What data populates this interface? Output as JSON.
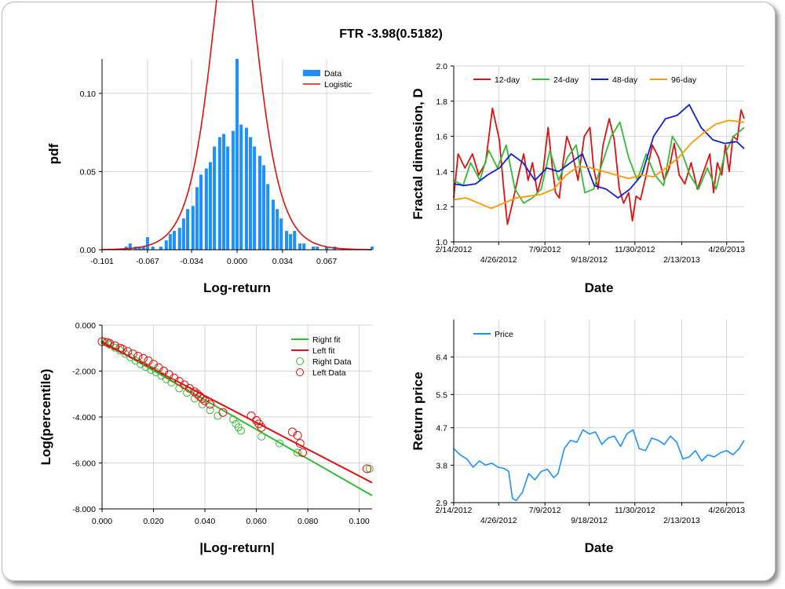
{
  "title": "FTR -3.98(0.5182)",
  "chart_data": [
    {
      "type": "bar",
      "id": "hist",
      "xlabel": "Log-return",
      "ylabel": "pdf",
      "xlim": [
        -0.101,
        0.101
      ],
      "ylim": [
        0,
        0.122
      ],
      "xticks": [
        -0.101,
        -0.067,
        -0.034,
        0.0,
        0.034,
        0.067
      ],
      "xtick_labels": [
        "-0.101",
        "-0.067",
        "-0.034",
        "0.000",
        "0.034",
        "0.067"
      ],
      "yticks": [
        0.0,
        0.05,
        0.1
      ],
      "ytick_labels": [
        "0.00",
        "0.05",
        "0.10"
      ],
      "legend": [
        "Data",
        "Logistic"
      ],
      "legend_position": "top-right",
      "colors": {
        "bars": "#1e90ff",
        "fit": "#dd1111"
      },
      "bin_width": 0.0033,
      "bins": [
        [
          -0.083,
          0.002
        ],
        [
          -0.08,
          0.004
        ],
        [
          -0.076,
          0.002
        ],
        [
          -0.073,
          0.002
        ],
        [
          -0.07,
          0.002
        ],
        [
          -0.067,
          0.008
        ],
        [
          -0.063,
          0.002
        ],
        [
          -0.057,
          0.002
        ],
        [
          -0.053,
          0.006
        ],
        [
          -0.05,
          0.01
        ],
        [
          -0.047,
          0.012
        ],
        [
          -0.043,
          0.014
        ],
        [
          -0.04,
          0.02
        ],
        [
          -0.037,
          0.026
        ],
        [
          -0.033,
          0.028
        ],
        [
          -0.03,
          0.04
        ],
        [
          -0.027,
          0.048
        ],
        [
          -0.023,
          0.052
        ],
        [
          -0.02,
          0.056
        ],
        [
          -0.017,
          0.066
        ],
        [
          -0.013,
          0.072
        ],
        [
          -0.01,
          0.074
        ],
        [
          -0.007,
          0.066
        ],
        [
          -0.003,
          0.076
        ],
        [
          0.0,
          0.122
        ],
        [
          0.003,
          0.08
        ],
        [
          0.007,
          0.078
        ],
        [
          0.01,
          0.072
        ],
        [
          0.013,
          0.066
        ],
        [
          0.017,
          0.06
        ],
        [
          0.02,
          0.054
        ],
        [
          0.023,
          0.042
        ],
        [
          0.027,
          0.032
        ],
        [
          0.03,
          0.026
        ],
        [
          0.033,
          0.02
        ],
        [
          0.037,
          0.012
        ],
        [
          0.04,
          0.01
        ],
        [
          0.043,
          0.012
        ],
        [
          0.047,
          0.004
        ],
        [
          0.05,
          0.004
        ],
        [
          0.057,
          0.002
        ],
        [
          0.06,
          0.002
        ],
        [
          0.067,
          0.002
        ],
        [
          0.073,
          0.002
        ],
        [
          0.101,
          0.002
        ]
      ],
      "fit": {
        "type": "logistic",
        "mu": -0.002,
        "s": 0.0112
      }
    },
    {
      "type": "line",
      "id": "fractal",
      "xlabel": "Date",
      "ylabel": "Fractal dimension, D",
      "ylim": [
        1.0,
        2.0
      ],
      "yticks": [
        1.0,
        1.2,
        1.4,
        1.6,
        1.8,
        2.0
      ],
      "ytick_labels": [
        "1.0",
        "1.2",
        "1.4",
        "1.6",
        "1.8",
        "2.0"
      ],
      "xlim": [
        "2/14/2012",
        "5/24/2013"
      ],
      "xtick_labels_top": [
        "2/14/2012",
        "7/9/2012",
        "11/30/2012",
        "4/26/2013"
      ],
      "xtick_labels_bottom": [
        "4/26/2012",
        "9/18/2012",
        "2/13/2013"
      ],
      "legend_position": "top",
      "series": [
        {
          "name": "12-day",
          "color": "#dd1111",
          "x": [
            "2/14/2012",
            "2/21/2012",
            "3/3/2012",
            "3/15/2012",
            "3/25/2012",
            "4/5/2012",
            "4/16/2012",
            "4/27/2012",
            "5/4/2012",
            "5/10/2012",
            "5/18/2012",
            "5/29/2012",
            "6/5/2012",
            "6/12/2012",
            "6/19/2012",
            "6/27/2012",
            "7/6/2012",
            "7/14/2012",
            "7/21/2012",
            "7/26/2012",
            "8/1/2012",
            "8/7/2012",
            "8/13/2012",
            "8/21/2012",
            "8/31/2012",
            "9/10/2012",
            "9/19/2012",
            "9/25/2012",
            "10/2/2012",
            "10/10/2012",
            "10/20/2012",
            "10/28/2012",
            "11/5/2012",
            "11/12/2012",
            "11/20/2012",
            "11/26/2012",
            "12/2/2012",
            "12/9/2012",
            "12/18/2012",
            "12/28/2012",
            "1/7/2013",
            "1/16/2013",
            "1/24/2013",
            "2/1/2013",
            "2/9/2013",
            "2/18/2013",
            "2/28/2013",
            "3/10/2013",
            "3/20/2013",
            "3/30/2013",
            "4/5/2013",
            "4/11/2013",
            "4/18/2013",
            "4/24/2013",
            "4/30/2013",
            "5/6/2013",
            "5/13/2013",
            "5/19/2013",
            "5/24/2013"
          ],
          "y": [
            1.25,
            1.5,
            1.42,
            1.5,
            1.38,
            1.45,
            1.76,
            1.58,
            1.3,
            1.1,
            1.22,
            1.4,
            1.5,
            1.35,
            1.45,
            1.28,
            1.4,
            1.65,
            1.42,
            1.28,
            1.25,
            1.45,
            1.6,
            1.52,
            1.35,
            1.6,
            1.65,
            1.42,
            1.3,
            1.55,
            1.7,
            1.58,
            1.3,
            1.22,
            1.28,
            1.12,
            1.26,
            1.24,
            1.38,
            1.55,
            1.48,
            1.35,
            1.42,
            1.56,
            1.38,
            1.33,
            1.45,
            1.3,
            1.4,
            1.5,
            1.28,
            1.45,
            1.38,
            1.55,
            1.4,
            1.6,
            1.58,
            1.75,
            1.7
          ]
        },
        {
          "name": "24-day",
          "color": "#33bb33",
          "x": [
            "2/14/2012",
            "2/29/2012",
            "3/12/2012",
            "3/27/2012",
            "4/10/2012",
            "4/24/2012",
            "5/8/2012",
            "5/22/2012",
            "6/5/2012",
            "6/19/2012",
            "7/3/2012",
            "7/17/2012",
            "7/31/2012",
            "8/14/2012",
            "8/28/2012",
            "9/11/2012",
            "9/25/2012",
            "10/9/2012",
            "10/23/2012",
            "11/6/2012",
            "11/20/2012",
            "12/4/2012",
            "12/18/2012",
            "1/1/2013",
            "1/15/2013",
            "1/29/2013",
            "2/12/2013",
            "2/26/2013",
            "3/12/2013",
            "3/26/2013",
            "4/9/2013",
            "4/23/2013",
            "5/7/2013",
            "5/24/2013"
          ],
          "y": [
            1.35,
            1.32,
            1.45,
            1.35,
            1.52,
            1.42,
            1.55,
            1.3,
            1.22,
            1.25,
            1.3,
            1.52,
            1.35,
            1.48,
            1.55,
            1.28,
            1.3,
            1.45,
            1.6,
            1.68,
            1.48,
            1.35,
            1.5,
            1.38,
            1.32,
            1.6,
            1.52,
            1.38,
            1.3,
            1.42,
            1.3,
            1.5,
            1.6,
            1.65
          ]
        },
        {
          "name": "48-day",
          "color": "#1122cc",
          "x": [
            "2/14/2012",
            "3/1/2012",
            "3/20/2012",
            "4/8/2012",
            "4/27/2012",
            "5/16/2012",
            "6/4/2012",
            "6/23/2012",
            "7/12/2012",
            "7/31/2012",
            "8/19/2012",
            "9/7/2012",
            "9/26/2012",
            "10/15/2012",
            "11/3/2012",
            "11/22/2012",
            "12/11/2012",
            "12/30/2012",
            "1/18/2013",
            "2/6/2013",
            "2/25/2013",
            "3/16/2013",
            "4/4/2013",
            "4/23/2013",
            "5/12/2013",
            "5/24/2013"
          ],
          "y": [
            1.33,
            1.32,
            1.33,
            1.38,
            1.42,
            1.5,
            1.45,
            1.35,
            1.42,
            1.4,
            1.45,
            1.5,
            1.32,
            1.3,
            1.25,
            1.3,
            1.38,
            1.6,
            1.7,
            1.72,
            1.78,
            1.65,
            1.58,
            1.56,
            1.57,
            1.53
          ]
        },
        {
          "name": "96-day",
          "color": "#ff9900",
          "x": [
            "2/14/2012",
            "3/5/2012",
            "3/25/2012",
            "4/14/2012",
            "5/4/2012",
            "5/24/2012",
            "6/13/2012",
            "7/3/2012",
            "7/23/2012",
            "8/12/2012",
            "9/1/2012",
            "9/21/2012",
            "10/11/2012",
            "10/31/2012",
            "11/20/2012",
            "12/10/2012",
            "12/30/2012",
            "1/19/2013",
            "2/8/2013",
            "2/28/2013",
            "3/20/2013",
            "4/9/2013",
            "4/29/2013",
            "5/24/2013"
          ],
          "y": [
            1.24,
            1.25,
            1.22,
            1.19,
            1.22,
            1.25,
            1.26,
            1.27,
            1.3,
            1.38,
            1.43,
            1.42,
            1.4,
            1.38,
            1.36,
            1.38,
            1.37,
            1.42,
            1.48,
            1.56,
            1.62,
            1.67,
            1.69,
            1.68
          ]
        }
      ]
    },
    {
      "type": "scatter",
      "id": "tails",
      "xlabel": "|Log-return|",
      "ylabel": "Log(percentile)",
      "xlim": [
        0.0,
        0.105
      ],
      "ylim": [
        -8.0,
        0.0
      ],
      "xticks": [
        0.0,
        0.02,
        0.04,
        0.06,
        0.08,
        0.1
      ],
      "xtick_labels": [
        "0.000",
        "0.020",
        "0.040",
        "0.060",
        "0.080",
        "0.100"
      ],
      "yticks": [
        -8.0,
        -6.0,
        -4.0,
        -2.0,
        0.0
      ],
      "ytick_labels": [
        "-8.000",
        "-6.000",
        "-4.000",
        "-2.000",
        "0.000"
      ],
      "legend_position": "top-right",
      "lines": [
        {
          "name": "Right fit",
          "color": "#33bb33",
          "x": [
            0.0,
            0.105
          ],
          "y": [
            -0.7,
            -7.42
          ]
        },
        {
          "name": "Left fit",
          "color": "#dd1111",
          "x": [
            0.0,
            0.105
          ],
          "y": [
            -0.75,
            -6.86
          ]
        }
      ],
      "series": [
        {
          "name": "Right Data",
          "color": "#33bb33",
          "x": [
            0.001,
            0.003,
            0.005,
            0.007,
            0.009,
            0.011,
            0.013,
            0.015,
            0.017,
            0.019,
            0.021,
            0.023,
            0.025,
            0.027,
            0.03,
            0.033,
            0.036,
            0.039,
            0.042,
            0.045,
            0.051,
            0.052,
            0.053,
            0.054,
            0.062,
            0.069,
            0.076,
            0.104
          ],
          "y": [
            -0.72,
            -0.85,
            -0.98,
            -1.1,
            -1.25,
            -1.4,
            -1.55,
            -1.7,
            -1.82,
            -1.95,
            -2.05,
            -2.2,
            -2.35,
            -2.5,
            -2.75,
            -2.95,
            -3.2,
            -3.45,
            -3.7,
            -3.95,
            -4.1,
            -4.3,
            -4.45,
            -4.6,
            -4.85,
            -5.15,
            -5.55,
            -6.25
          ]
        },
        {
          "name": "Left Data",
          "color": "#dd1111",
          "x": [
            0.0,
            0.002,
            0.003,
            0.005,
            0.007,
            0.008,
            0.01,
            0.012,
            0.014,
            0.016,
            0.018,
            0.02,
            0.022,
            0.024,
            0.026,
            0.028,
            0.03,
            0.032,
            0.034,
            0.036,
            0.037,
            0.038,
            0.039,
            0.04,
            0.042,
            0.047,
            0.058,
            0.06,
            0.061,
            0.062,
            0.074,
            0.076,
            0.077,
            0.078,
            0.103
          ],
          "y": [
            -0.72,
            -0.75,
            -0.8,
            -0.9,
            -1.0,
            -1.05,
            -1.15,
            -1.25,
            -1.35,
            -1.45,
            -1.55,
            -1.7,
            -1.85,
            -2.0,
            -2.15,
            -2.3,
            -2.45,
            -2.6,
            -2.75,
            -2.9,
            -3.0,
            -3.1,
            -3.2,
            -3.3,
            -3.45,
            -3.8,
            -3.95,
            -4.15,
            -4.3,
            -4.45,
            -4.65,
            -4.8,
            -5.15,
            -5.55,
            -6.25
          ]
        }
      ]
    },
    {
      "type": "line",
      "id": "price",
      "xlabel": "Date",
      "ylabel": "Return price",
      "ylim": [
        2.9,
        7.3
      ],
      "yticks": [
        2.9,
        3.8,
        4.7,
        5.5,
        6.4
      ],
      "ytick_labels": [
        "2.9",
        "3.8",
        "4.7",
        "5.5",
        "6.4"
      ],
      "xlim": [
        "2/14/2012",
        "5/24/2013"
      ],
      "xtick_labels_top": [
        "2/14/2012",
        "7/9/2012",
        "11/30/2012",
        "4/26/2013"
      ],
      "xtick_labels_bottom": [
        "4/26/2012",
        "9/18/2012",
        "2/13/2013"
      ],
      "legend_position": "top-left",
      "series": [
        {
          "name": "Price",
          "color": "#1e90ff",
          "x": [
            "2/14/2012",
            "2/24/2012",
            "3/6/2012",
            "3/16/2012",
            "3/26/2012",
            "4/5/2012",
            "4/15/2012",
            "4/25/2012",
            "5/5/2012",
            "5/12/2012",
            "5/18/2012",
            "5/24/2012",
            "6/3/2012",
            "6/13/2012",
            "6/23/2012",
            "7/3/2012",
            "7/13/2012",
            "7/23/2012",
            "7/30/2012",
            "8/9/2012",
            "8/19/2012",
            "8/29/2012",
            "9/8/2012",
            "9/18/2012",
            "9/28/2012",
            "10/8/2012",
            "10/18/2012",
            "10/28/2012",
            "11/7/2012",
            "11/17/2012",
            "11/27/2012",
            "12/7/2012",
            "12/17/2012",
            "12/27/2012",
            "1/6/2013",
            "1/16/2013",
            "1/26/2013",
            "2/5/2013",
            "2/15/2013",
            "2/25/2013",
            "3/7/2013",
            "3/17/2013",
            "3/27/2013",
            "4/6/2013",
            "4/16/2013",
            "4/26/2013",
            "5/6/2013",
            "5/16/2013",
            "5/24/2013"
          ],
          "y": [
            4.2,
            4.05,
            3.95,
            3.75,
            3.9,
            3.8,
            3.85,
            3.75,
            3.72,
            3.65,
            3.0,
            2.95,
            3.15,
            3.6,
            3.45,
            3.65,
            3.7,
            3.5,
            3.6,
            4.2,
            4.4,
            4.35,
            4.65,
            4.55,
            4.6,
            4.3,
            4.45,
            4.5,
            4.25,
            4.55,
            4.65,
            4.2,
            4.15,
            4.45,
            4.4,
            4.3,
            4.5,
            4.35,
            3.95,
            4.0,
            4.15,
            3.9,
            4.05,
            4.0,
            4.1,
            4.15,
            4.05,
            4.2,
            4.4
          ]
        }
      ]
    }
  ]
}
